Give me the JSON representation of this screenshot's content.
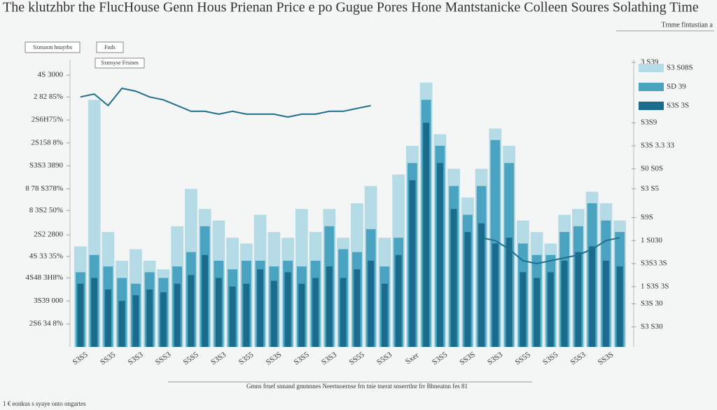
{
  "chart_data": {
    "type": "bar",
    "title": "The klutzhbr the FlucHouse Genn Hous Prienan Price e po Gugue Pores Hone Mantstanicke Colleen Soures Solathing Time",
    "subtitle": "Trnme fintustian a",
    "caption": "Gmns frnef snnand gmmnnes Neertnoernse frn tnie tnerat snserrtlnr frr Bhneatnn fes 81",
    "footnote": "1 € eonkus s syaye onto ongartes",
    "annotations": [
      "Sxmaxm hnayrbs",
      "Fnds",
      "Sxmsyse Frsines"
    ],
    "categories": [
      "S3S5",
      null,
      "SS35",
      null,
      "S3S3",
      null,
      "SSS3",
      null,
      "S5S5",
      null,
      "S3S3",
      null,
      "S355",
      null,
      "SS3S",
      null,
      "S3S5",
      null,
      "S3S3",
      null,
      "SS55",
      null,
      "S5S3",
      null,
      "Sxer",
      null,
      "S3S5",
      null,
      "SS3S",
      null,
      "S3S3",
      null,
      "SS55",
      null,
      "S3S5",
      null,
      "S5S3",
      null,
      "SS3S",
      null
    ],
    "series": [
      {
        "name": "S3 S08S",
        "color": "#b5dbe6",
        "values": [
          35,
          86,
          40,
          30,
          34,
          30,
          27,
          42,
          55,
          48,
          44,
          38,
          36,
          46,
          40,
          38,
          48,
          40,
          48,
          38,
          50,
          56,
          38,
          60,
          70,
          92,
          74,
          62,
          52,
          62,
          76,
          70,
          44,
          40,
          36,
          46,
          48,
          54,
          50,
          44
        ]
      },
      {
        "name": "SD 39",
        "color": "#4aa3c0",
        "values": [
          26,
          32,
          28,
          24,
          22,
          26,
          24,
          28,
          33,
          42,
          30,
          27,
          30,
          30,
          28,
          30,
          28,
          30,
          42,
          34,
          33,
          41,
          28,
          38,
          64,
          86,
          70,
          56,
          46,
          56,
          72,
          64,
          36,
          32,
          32,
          40,
          42,
          50,
          44,
          40
        ]
      },
      {
        "name": "S3S 3S",
        "color": "#1a6b8c",
        "values": [
          22,
          24,
          20,
          16,
          18,
          20,
          19,
          22,
          25,
          32,
          24,
          21,
          22,
          27,
          23,
          26,
          22,
          24,
          28,
          24,
          27,
          30,
          22,
          32,
          58,
          78,
          64,
          48,
          40,
          43,
          36,
          38,
          26,
          24,
          26,
          30,
          33,
          35,
          30,
          28
        ]
      }
    ],
    "line": {
      "color": "#1f6f8f",
      "values": [
        87,
        88,
        84,
        90,
        89,
        87,
        86,
        84,
        82,
        82,
        81,
        82,
        81,
        81,
        81,
        80,
        81,
        81,
        82,
        82,
        83,
        84,
        null,
        null,
        null,
        null,
        null,
        null,
        null,
        38,
        37,
        34,
        30,
        29,
        30,
        31,
        32,
        34,
        37,
        38
      ]
    },
    "ylim": [
      0,
      100
    ],
    "yticks": [
      {
        "value": 8,
        "label": "2S6 34 8%"
      },
      {
        "value": 16,
        "label": "3S39 000"
      },
      {
        "value": 24,
        "label": "4S48 3H8%"
      },
      {
        "value": 31.5,
        "label": "4S 33 35%"
      },
      {
        "value": 39,
        "label": "2S2 2800"
      },
      {
        "value": 47.5,
        "label": "8 3S2 50%"
      },
      {
        "value": 55,
        "label": "8 78 S378%"
      },
      {
        "value": 63,
        "label": "S3S3 3890"
      },
      {
        "value": 71,
        "label": "2S158 8%"
      },
      {
        "value": 79,
        "label": "2S6H75%"
      },
      {
        "value": 87,
        "label": "2 82 85%"
      },
      {
        "value": 94.6,
        "label": "4S 3000"
      }
    ],
    "y2lim": [
      0,
      100
    ],
    "y2ticks": [
      {
        "value": 7,
        "label": "S3 S30"
      },
      {
        "value": 15,
        "label": "S3S 30"
      },
      {
        "value": 21,
        "label": "1 S3S 3S"
      },
      {
        "value": 29,
        "label": "S3S3 3S"
      },
      {
        "value": 37,
        "label": "1 S030"
      },
      {
        "value": 45,
        "label": "S9S"
      },
      {
        "value": 55,
        "label": "S3 S5"
      },
      {
        "value": 62,
        "label": "S0 S0S"
      },
      {
        "value": 70,
        "label": "S3S 3.3 33"
      },
      {
        "value": 78,
        "label": "S3S9"
      },
      {
        "value": 99,
        "label": "3 S39"
      }
    ]
  }
}
